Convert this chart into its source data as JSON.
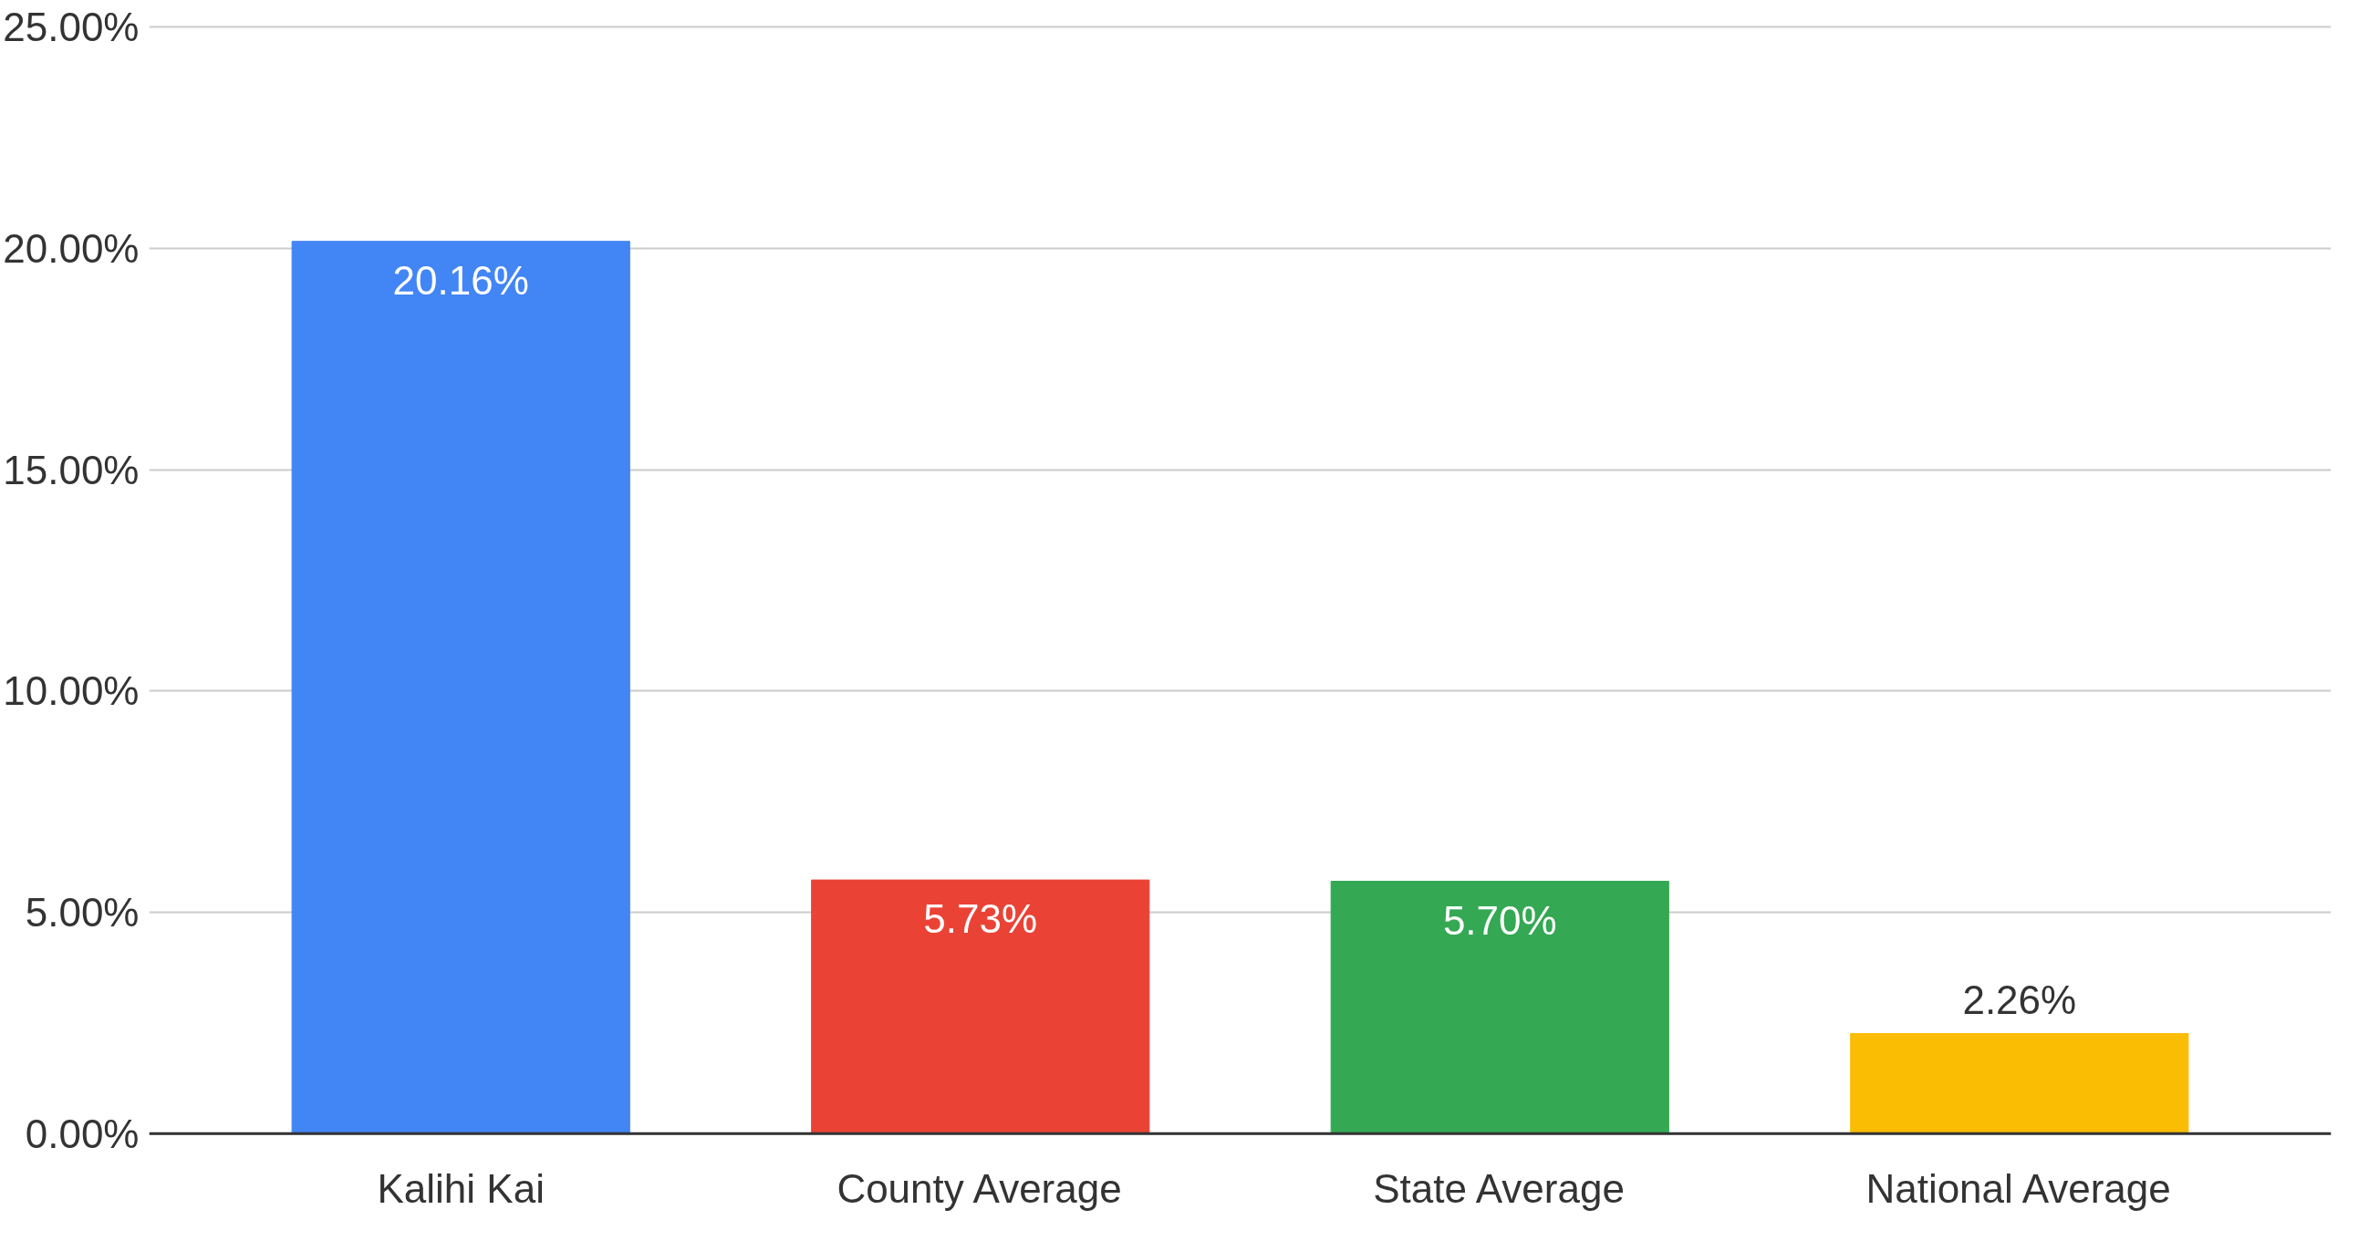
{
  "chart_data": {
    "type": "bar",
    "categories": [
      "Kalihi Kai",
      "County Average",
      "State Average",
      "National Average"
    ],
    "values": [
      20.16,
      5.73,
      5.7,
      2.26
    ],
    "colors": [
      "#4285f4",
      "#ea4335",
      "#34a853",
      "#fbbc04"
    ],
    "value_labels": [
      "20.16%",
      "5.73%",
      "5.70%",
      "2.26%"
    ],
    "ylim": [
      0,
      25
    ],
    "yticks": [
      {
        "value": 0,
        "label": "0.00%"
      },
      {
        "value": 5,
        "label": "5.00%"
      },
      {
        "value": 10,
        "label": "10.00%"
      },
      {
        "value": 15,
        "label": "15.00%"
      },
      {
        "value": 20,
        "label": "20.00%"
      },
      {
        "value": 25,
        "label": "25.00%"
      }
    ],
    "grid": "y"
  }
}
